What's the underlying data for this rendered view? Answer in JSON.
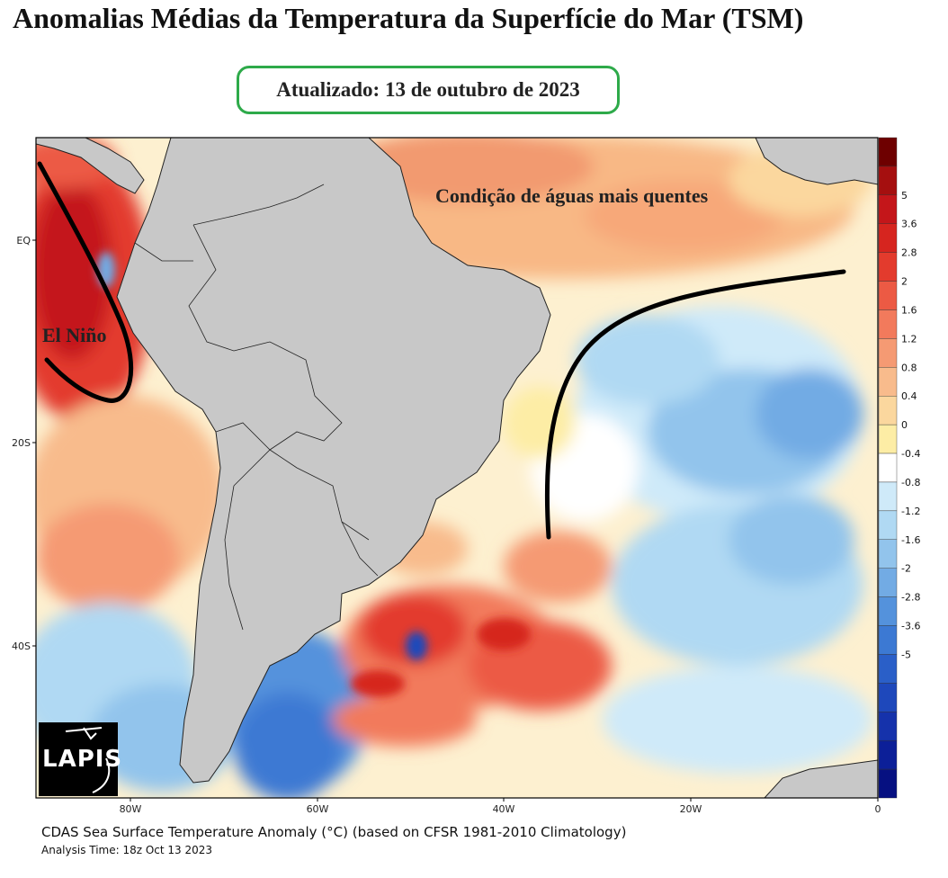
{
  "title": "Anomalias Médias da Temperatura da Superfície do Mar (TSM)",
  "updated_label": "Atualizado: 13 de outubro de 2023",
  "annotations": {
    "warm_water": "Condição de águas mais quentes",
    "el_nino": "El Niño"
  },
  "axes": {
    "lat_labels": [
      "EQ",
      "20S",
      "40S"
    ],
    "lon_labels": [
      "80W",
      "60W",
      "40W",
      "20W",
      "0"
    ]
  },
  "colorbar": {
    "labels": [
      "5",
      "3.6",
      "2.8",
      "2",
      "1.6",
      "1.2",
      "0.8",
      "0.4",
      "0",
      "-0.4",
      "-0.8",
      "-1.2",
      "-1.6",
      "-2",
      "-2.8",
      "-3.6",
      "-5"
    ],
    "colors": [
      "#6e0000",
      "#a50f0f",
      "#c4161a",
      "#d6251f",
      "#e33b2d",
      "#ec5a44",
      "#f27a5c",
      "#f59a73",
      "#f8bb8c",
      "#fbd79e",
      "#fdeda5",
      "#ffffff",
      "#cfeaf9",
      "#b0d9f3",
      "#92c4ec",
      "#72abe4",
      "#5492dc",
      "#3c79d3",
      "#2a5fc8",
      "#1e48bb",
      "#1532ab",
      "#0c1f98",
      "#061081"
    ]
  },
  "footer": {
    "title": "CDAS Sea Surface Temperature Anomaly (°C) (based on CFSR 1981-2010 Climatology)",
    "analysis_time": "Analysis Time: 18z Oct 13 2023"
  },
  "logo_text": "LAPIS",
  "colors": {
    "land": "#c8c8c8",
    "border_box": "#2eaa4a",
    "contour": "#000000"
  }
}
